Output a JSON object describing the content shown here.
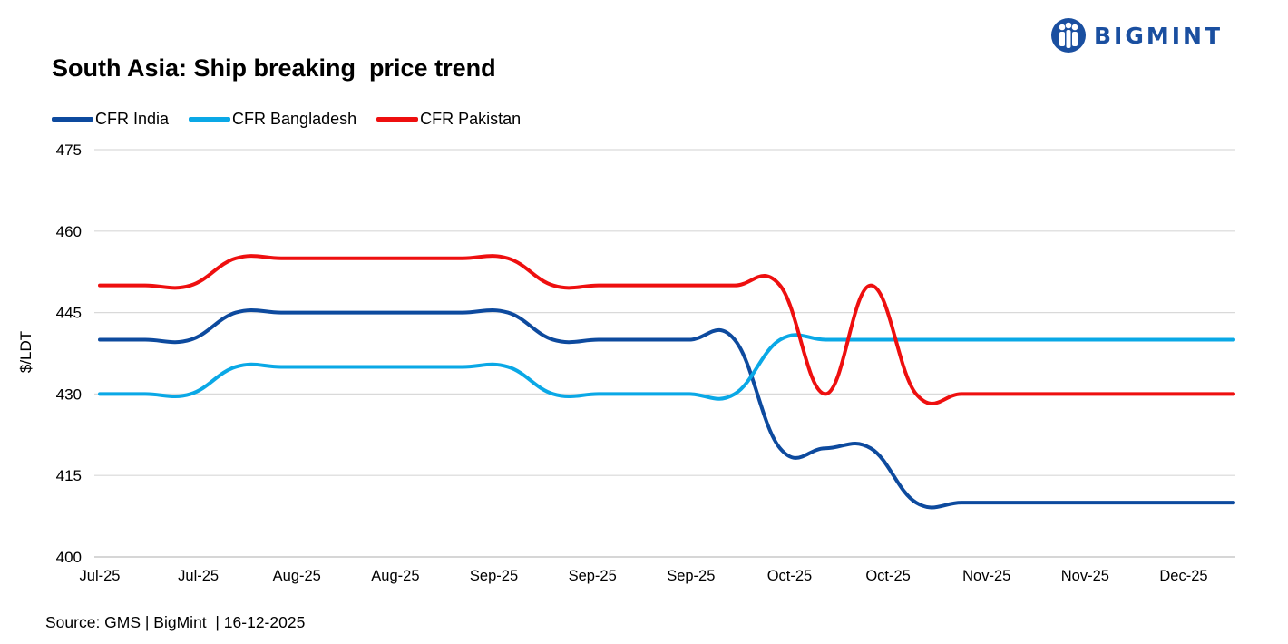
{
  "brand": {
    "name": "BIGMINT",
    "color": "#1a4fa0"
  },
  "source_text": "Source: GMS | BigMint  | 16-12-2025",
  "chart_data": {
    "type": "line",
    "title": "South Asia: Ship breaking  price trend",
    "ylabel": "$/LDT",
    "xlabel": "",
    "ylim": [
      400,
      475
    ],
    "yticks": [
      400,
      415,
      430,
      445,
      460,
      475
    ],
    "grid": true,
    "legend_position": "top-left",
    "categories": [
      "Jul-25",
      "Jul-25",
      "Jul-25",
      "Jul-25",
      "Aug-25",
      "Aug-25",
      "Aug-25",
      "Aug-25",
      "Sep-25",
      "Sep-25",
      "Sep-25",
      "Sep-25",
      "Sep-25",
      "Sep-25",
      "Oct-25",
      "Oct-25",
      "Oct-25",
      "Oct-25",
      "Oct-25",
      "Nov-25",
      "Nov-25",
      "Nov-25",
      "Nov-25",
      "Nov-25",
      "Dec-25",
      "Dec-25"
    ],
    "x_tick_labels": [
      "Jul-25",
      "Jul-25",
      "Aug-25",
      "Aug-25",
      "Sep-25",
      "Sep-25",
      "Sep-25",
      "Oct-25",
      "Oct-25",
      "Nov-25",
      "Nov-25",
      "Dec-25"
    ],
    "series": [
      {
        "name": "CFR India",
        "color": "#0d4a9e",
        "values": [
          440,
          440,
          440,
          445,
          445,
          445,
          445,
          445,
          445,
          445,
          440,
          440,
          440,
          440,
          440,
          420,
          420,
          420,
          410,
          410,
          410,
          410,
          410,
          410,
          410,
          410
        ]
      },
      {
        "name": "CFR Bangladesh",
        "color": "#0aa8e6",
        "values": [
          430,
          430,
          430,
          435,
          435,
          435,
          435,
          435,
          435,
          435,
          430,
          430,
          430,
          430,
          430,
          440,
          440,
          440,
          440,
          440,
          440,
          440,
          440,
          440,
          440,
          440
        ]
      },
      {
        "name": "CFR Pakistan",
        "color": "#ee0f0f",
        "values": [
          450,
          450,
          450,
          455,
          455,
          455,
          455,
          455,
          455,
          455,
          450,
          450,
          450,
          450,
          450,
          450,
          430,
          450,
          430,
          430,
          430,
          430,
          430,
          430,
          430,
          430
        ]
      }
    ]
  }
}
